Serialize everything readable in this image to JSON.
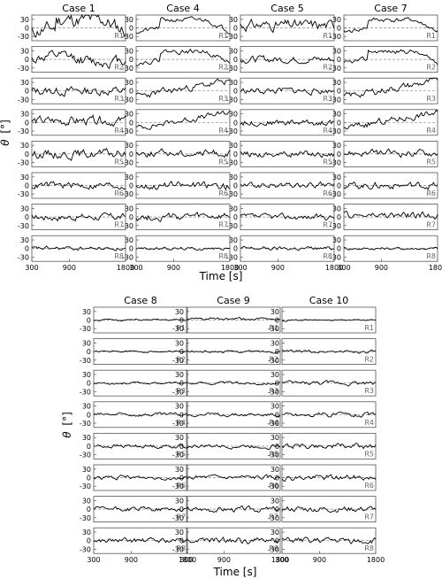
{
  "figure": {
    "y_symbol": "θ",
    "y_unit": "[°]",
    "x_label": "Time [s]",
    "y_ticks": [
      30,
      0,
      -30
    ],
    "x_ticks": [
      300,
      900,
      1800
    ],
    "row_labels": [
      "R1",
      "R2",
      "R3",
      "R4",
      "R5",
      "R6",
      "R7",
      "R8"
    ]
  },
  "chart_data": [
    {
      "type": "line",
      "title": "Case 1",
      "xlabel": "Time [s]",
      "ylabel": "θ [°]",
      "xlim": [
        300,
        1800
      ],
      "ylim": [
        -45,
        45
      ],
      "grid": false,
      "reference_line": {
        "y": 0,
        "style": "dashed"
      },
      "series": [
        {
          "name": "R1",
          "amp": 25,
          "bias": 15,
          "shape": "plateau",
          "seed": 11
        },
        {
          "name": "R2",
          "amp": 18,
          "bias": 0,
          "shape": "hump",
          "seed": 12
        },
        {
          "name": "R3",
          "amp": 15,
          "bias": 0,
          "shape": "noise",
          "seed": 13
        },
        {
          "name": "R4",
          "amp": 16,
          "bias": 5,
          "shape": "noise",
          "seed": 14
        },
        {
          "name": "R5",
          "amp": 15,
          "bias": 0,
          "shape": "noise",
          "seed": 15
        },
        {
          "name": "R6",
          "amp": 12,
          "bias": 0,
          "shape": "noise",
          "seed": 16
        },
        {
          "name": "R7",
          "amp": 12,
          "bias": 0,
          "shape": "noise",
          "seed": 17
        },
        {
          "name": "R8",
          "amp": 7,
          "bias": 0,
          "shape": "noise",
          "seed": 18
        }
      ]
    },
    {
      "type": "line",
      "title": "Case 4",
      "xlabel": "Time [s]",
      "ylabel": "θ [°]",
      "xlim": [
        300,
        1800
      ],
      "ylim": [
        -45,
        45
      ],
      "grid": false,
      "reference_line": {
        "y": 0,
        "style": "dashed"
      },
      "series": [
        {
          "name": "R1",
          "amp": 8,
          "bias": 0,
          "shape": "plateau",
          "seed": 21
        },
        {
          "name": "R2",
          "amp": 8,
          "bias": 0,
          "shape": "plateau",
          "seed": 22
        },
        {
          "name": "R3",
          "amp": 12,
          "bias": 0,
          "shape": "rise",
          "seed": 23
        },
        {
          "name": "R4",
          "amp": 10,
          "bias": 0,
          "shape": "rise",
          "seed": 24
        },
        {
          "name": "R5",
          "amp": 12,
          "bias": 3,
          "shape": "noise",
          "seed": 25
        },
        {
          "name": "R6",
          "amp": 13,
          "bias": 0,
          "shape": "noise",
          "seed": 26
        },
        {
          "name": "R7",
          "amp": 13,
          "bias": 0,
          "shape": "noise",
          "seed": 27
        },
        {
          "name": "R8",
          "amp": 5,
          "bias": 0,
          "shape": "noise",
          "seed": 28
        }
      ]
    },
    {
      "type": "line",
      "title": "Case 5",
      "xlabel": "Time [s]",
      "ylabel": "θ [°]",
      "xlim": [
        300,
        1800
      ],
      "ylim": [
        -45,
        45
      ],
      "grid": false,
      "reference_line": {
        "y": 0,
        "style": "dashed"
      },
      "series": [
        {
          "name": "R1",
          "amp": 18,
          "bias": 10,
          "shape": "noise",
          "seed": 31
        },
        {
          "name": "R2",
          "amp": 12,
          "bias": 0,
          "shape": "noise",
          "seed": 32
        },
        {
          "name": "R3",
          "amp": 11,
          "bias": 0,
          "shape": "noise",
          "seed": 33
        },
        {
          "name": "R4",
          "amp": 11,
          "bias": 0,
          "shape": "noise",
          "seed": 34
        },
        {
          "name": "R5",
          "amp": 11,
          "bias": 0,
          "shape": "noise",
          "seed": 35
        },
        {
          "name": "R6",
          "amp": 10,
          "bias": 0,
          "shape": "noise",
          "seed": 36
        },
        {
          "name": "R7",
          "amp": 10,
          "bias": 0,
          "shape": "noise",
          "seed": 37
        },
        {
          "name": "R8",
          "amp": 7,
          "bias": 0,
          "shape": "noise",
          "seed": 38
        }
      ]
    },
    {
      "type": "line",
      "title": "Case 7",
      "xlabel": "Time [s]",
      "ylabel": "θ [°]",
      "xlim": [
        300,
        1800
      ],
      "ylim": [
        -45,
        45
      ],
      "grid": false,
      "reference_line": {
        "y": 0,
        "style": "dashed"
      },
      "series": [
        {
          "name": "R1",
          "amp": 8,
          "bias": 0,
          "shape": "plateau",
          "seed": 41
        },
        {
          "name": "R2",
          "amp": 8,
          "bias": 0,
          "shape": "plateau",
          "seed": 42
        },
        {
          "name": "R3",
          "amp": 12,
          "bias": 0,
          "shape": "rise",
          "seed": 43
        },
        {
          "name": "R4",
          "amp": 12,
          "bias": 0,
          "shape": "rise",
          "seed": 44
        },
        {
          "name": "R5",
          "amp": 12,
          "bias": 3,
          "shape": "noise",
          "seed": 45
        },
        {
          "name": "R6",
          "amp": 12,
          "bias": 0,
          "shape": "noise",
          "seed": 46
        },
        {
          "name": "R7",
          "amp": 12,
          "bias": 5,
          "shape": "noise",
          "seed": 47
        },
        {
          "name": "R8",
          "amp": 5,
          "bias": 0,
          "shape": "noise",
          "seed": 48
        }
      ]
    },
    {
      "type": "line",
      "title": "Case 8",
      "xlabel": "Time [s]",
      "ylabel": "θ [°]",
      "xlim": [
        300,
        1800
      ],
      "ylim": [
        -45,
        45
      ],
      "grid": false,
      "reference_line": {
        "y": 0,
        "style": "dashed"
      },
      "series": [
        {
          "name": "R1",
          "amp": 3,
          "bias": 0,
          "shape": "noise",
          "seed": 51
        },
        {
          "name": "R2",
          "amp": 3,
          "bias": 0,
          "shape": "noise",
          "seed": 52
        },
        {
          "name": "R3",
          "amp": 4,
          "bias": 0,
          "shape": "noise",
          "seed": 53
        },
        {
          "name": "R4",
          "amp": 6,
          "bias": 0,
          "shape": "noise",
          "seed": 54
        },
        {
          "name": "R5",
          "amp": 7,
          "bias": 0,
          "shape": "noise",
          "seed": 55
        },
        {
          "name": "R6",
          "amp": 7,
          "bias": 0,
          "shape": "noise",
          "seed": 56
        },
        {
          "name": "R7",
          "amp": 8,
          "bias": 0,
          "shape": "noise",
          "seed": 57
        },
        {
          "name": "R8",
          "amp": 9,
          "bias": 0,
          "shape": "noise",
          "seed": 58
        }
      ]
    },
    {
      "type": "line",
      "title": "Case 9",
      "xlabel": "Time [s]",
      "ylabel": "θ [°]",
      "xlim": [
        300,
        1800
      ],
      "ylim": [
        -45,
        45
      ],
      "grid": false,
      "reference_line": {
        "y": 0,
        "style": "dashed"
      },
      "series": [
        {
          "name": "R1",
          "amp": 5,
          "bias": 3,
          "shape": "noise",
          "seed": 61
        },
        {
          "name": "R2",
          "amp": 4,
          "bias": 0,
          "shape": "noise",
          "seed": 62
        },
        {
          "name": "R3",
          "amp": 5,
          "bias": 0,
          "shape": "noise",
          "seed": 63
        },
        {
          "name": "R4",
          "amp": 6,
          "bias": 0,
          "shape": "noise",
          "seed": 64
        },
        {
          "name": "R5",
          "amp": 7,
          "bias": 0,
          "shape": "noise",
          "seed": 65
        },
        {
          "name": "R6",
          "amp": 8,
          "bias": 0,
          "shape": "noise",
          "seed": 66
        },
        {
          "name": "R7",
          "amp": 9,
          "bias": 0,
          "shape": "noise",
          "seed": 67
        },
        {
          "name": "R8",
          "amp": 11,
          "bias": 0,
          "shape": "noise",
          "seed": 68
        }
      ]
    },
    {
      "type": "line",
      "title": "Case 10",
      "xlabel": "Time [s]",
      "ylabel": "θ [°]",
      "xlim": [
        300,
        1800
      ],
      "ylim": [
        -45,
        45
      ],
      "grid": false,
      "reference_line": {
        "y": 0,
        "style": "dashed"
      },
      "series": [
        {
          "name": "R1",
          "amp": 3,
          "bias": 0,
          "shape": "noise",
          "seed": 71
        },
        {
          "name": "R2",
          "amp": 5,
          "bias": 0,
          "shape": "noise",
          "seed": 72
        },
        {
          "name": "R3",
          "amp": 7,
          "bias": 0,
          "shape": "noise",
          "seed": 73
        },
        {
          "name": "R4",
          "amp": 8,
          "bias": 0,
          "shape": "noise",
          "seed": 74
        },
        {
          "name": "R5",
          "amp": 9,
          "bias": 0,
          "shape": "noise",
          "seed": 75
        },
        {
          "name": "R6",
          "amp": 10,
          "bias": 0,
          "shape": "noise",
          "seed": 76
        },
        {
          "name": "R7",
          "amp": 10,
          "bias": 0,
          "shape": "noise",
          "seed": 77
        },
        {
          "name": "R8",
          "amp": 11,
          "bias": 0,
          "shape": "noise",
          "seed": 78
        }
      ]
    }
  ]
}
